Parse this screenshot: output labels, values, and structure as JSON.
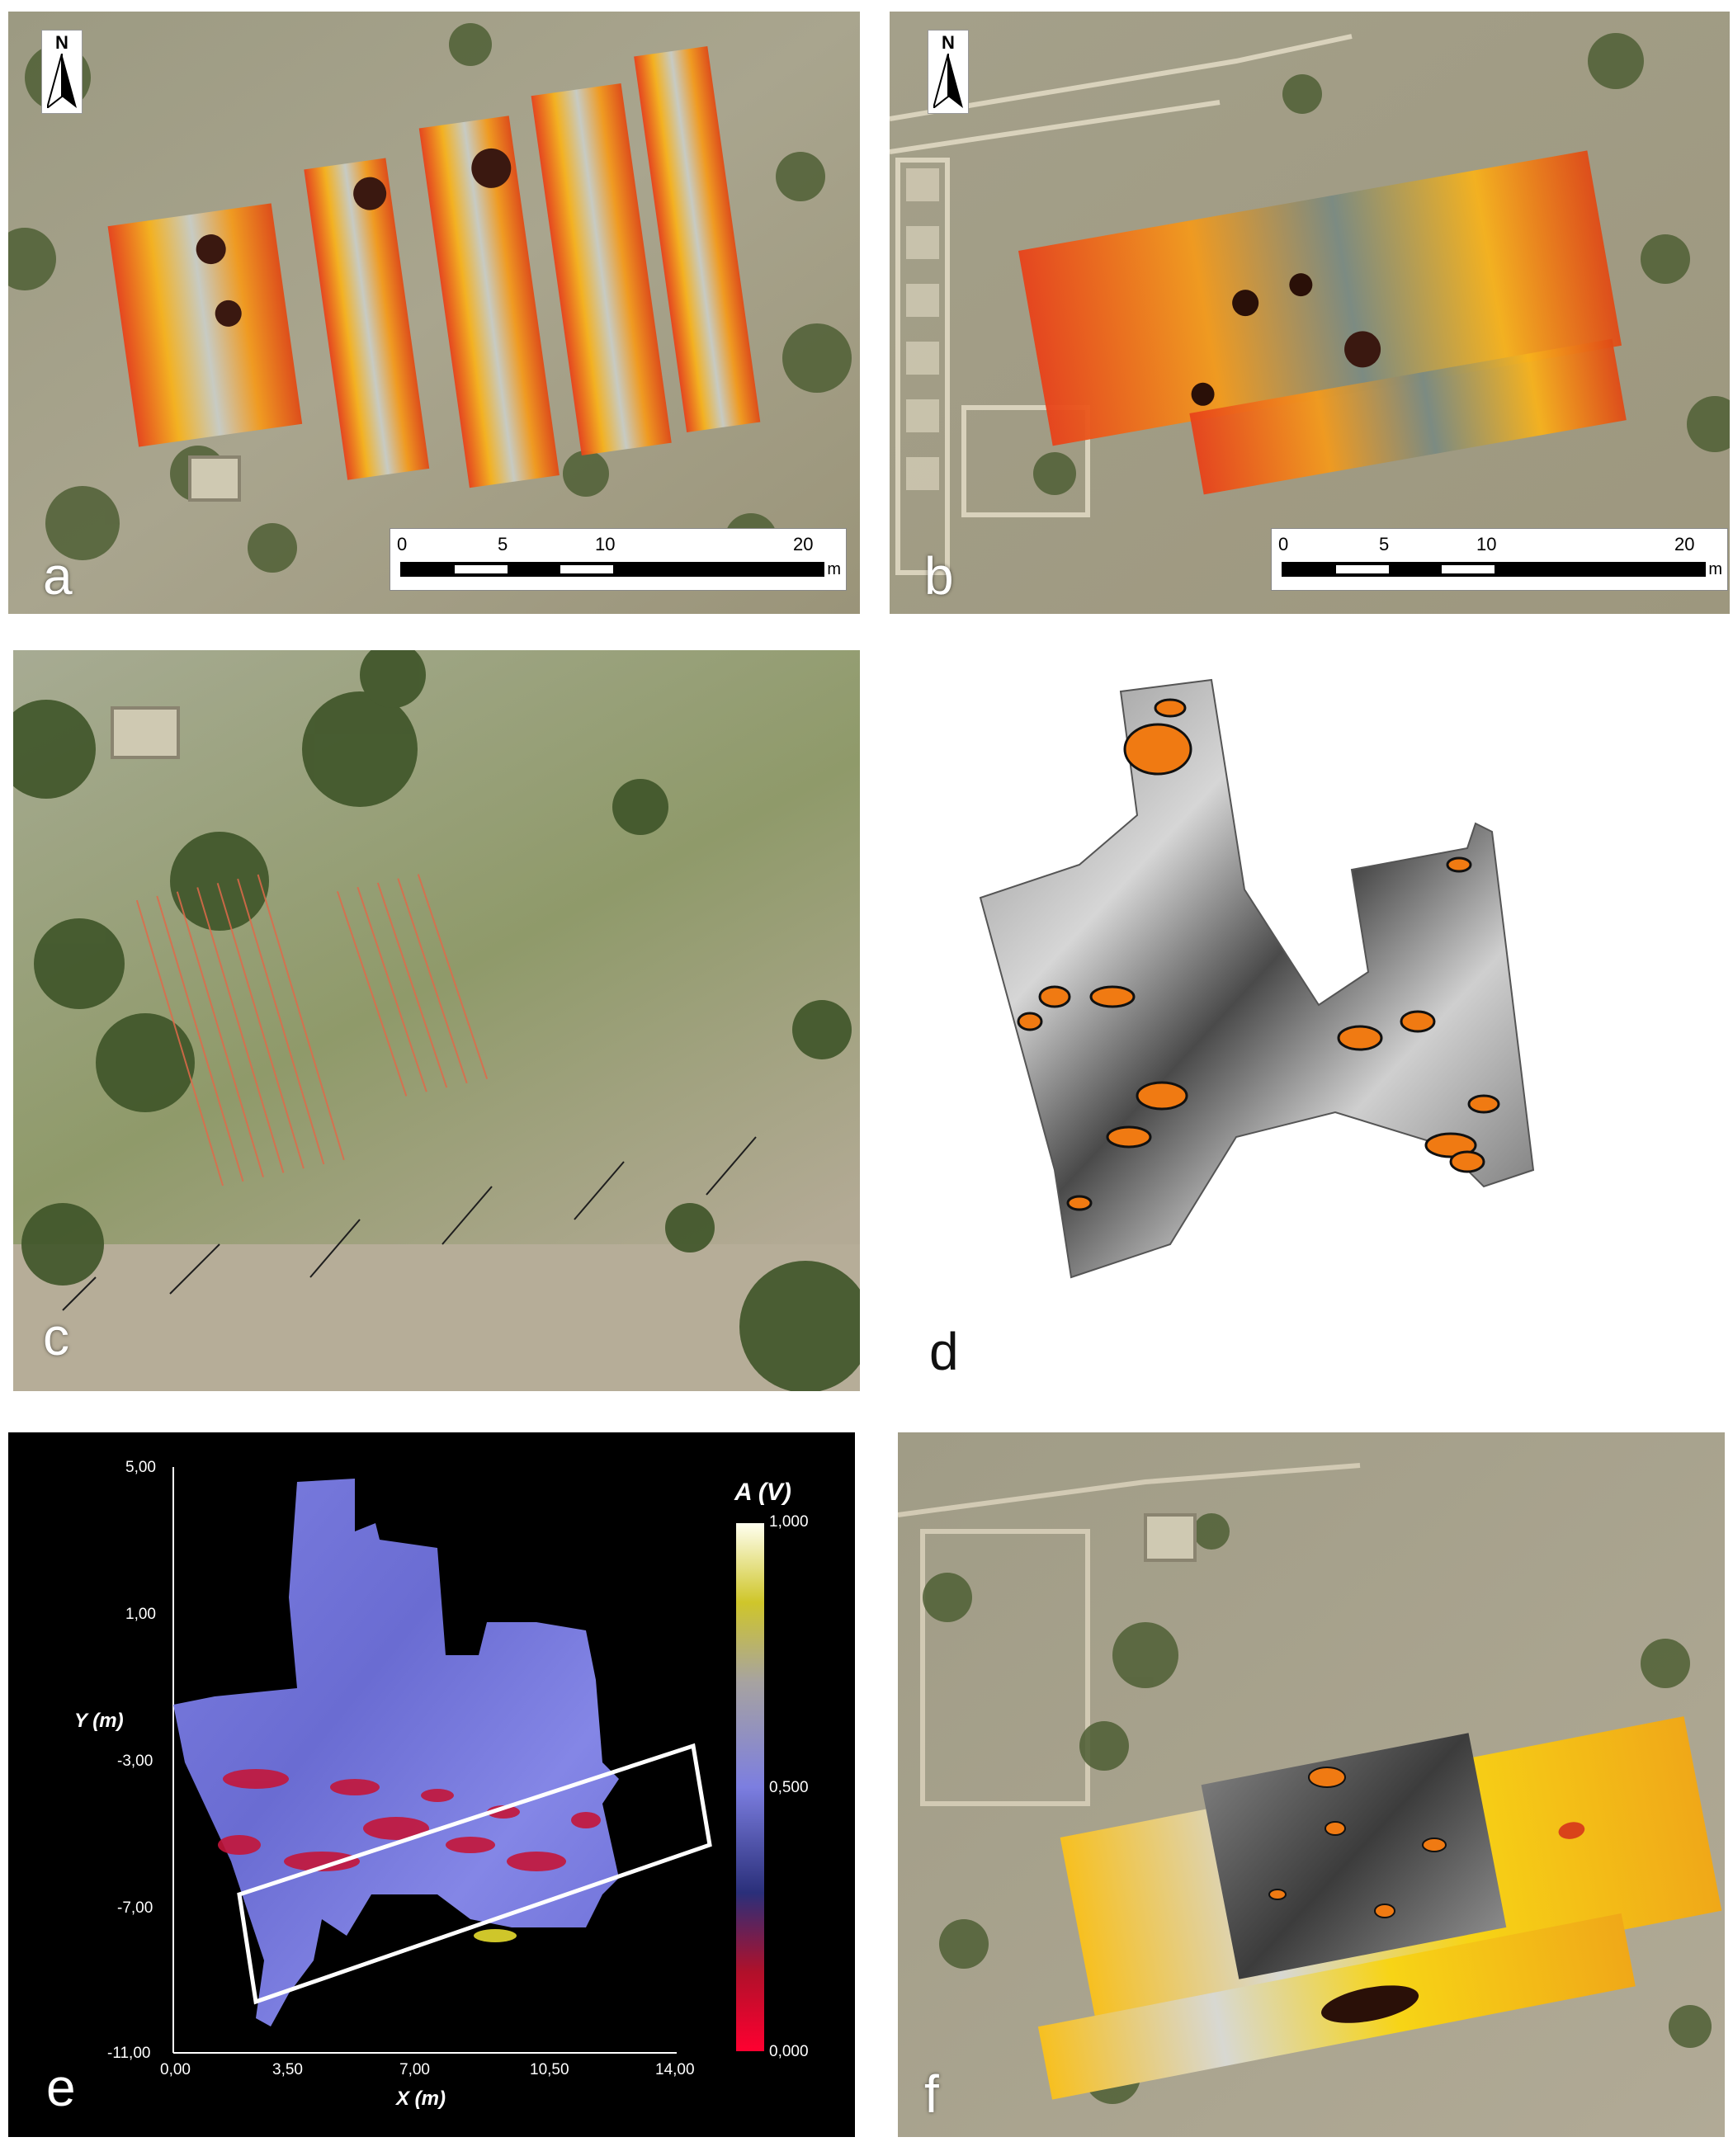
{
  "panels": {
    "a": {
      "label": "a",
      "north": "N",
      "scale_ticks": [
        "0",
        "5",
        "10",
        "20"
      ],
      "scale_unit": "m"
    },
    "b": {
      "label": "b",
      "north": "N",
      "scale_ticks": [
        "0",
        "5",
        "10",
        "20"
      ],
      "scale_unit": "m"
    },
    "c": {
      "label": "c"
    },
    "d": {
      "label": "d"
    },
    "e": {
      "label": "e",
      "y_axis_title": "Y (m)",
      "x_axis_title": "X (m)",
      "y_ticks": [
        "5,00",
        "1,00",
        "-3,00",
        "-7,00",
        "-11,00"
      ],
      "x_ticks": [
        "0,00",
        "3,50",
        "7,00",
        "10,50",
        "14,00"
      ],
      "colorbar_title": "A (V)",
      "colorbar_ticks": [
        "1,000",
        "0,500",
        "0,000"
      ]
    },
    "f": {
      "label": "f"
    }
  },
  "colors": {
    "vegetation": "#5a6b3a",
    "soil": "#a8a28a",
    "anomaly_hot": "#e8421a",
    "anomaly_warm": "#f7b21c",
    "anomaly_orange": "#f07a12",
    "gpr_blue": "#7c7ee0",
    "gpr_red": "#c4163a"
  }
}
